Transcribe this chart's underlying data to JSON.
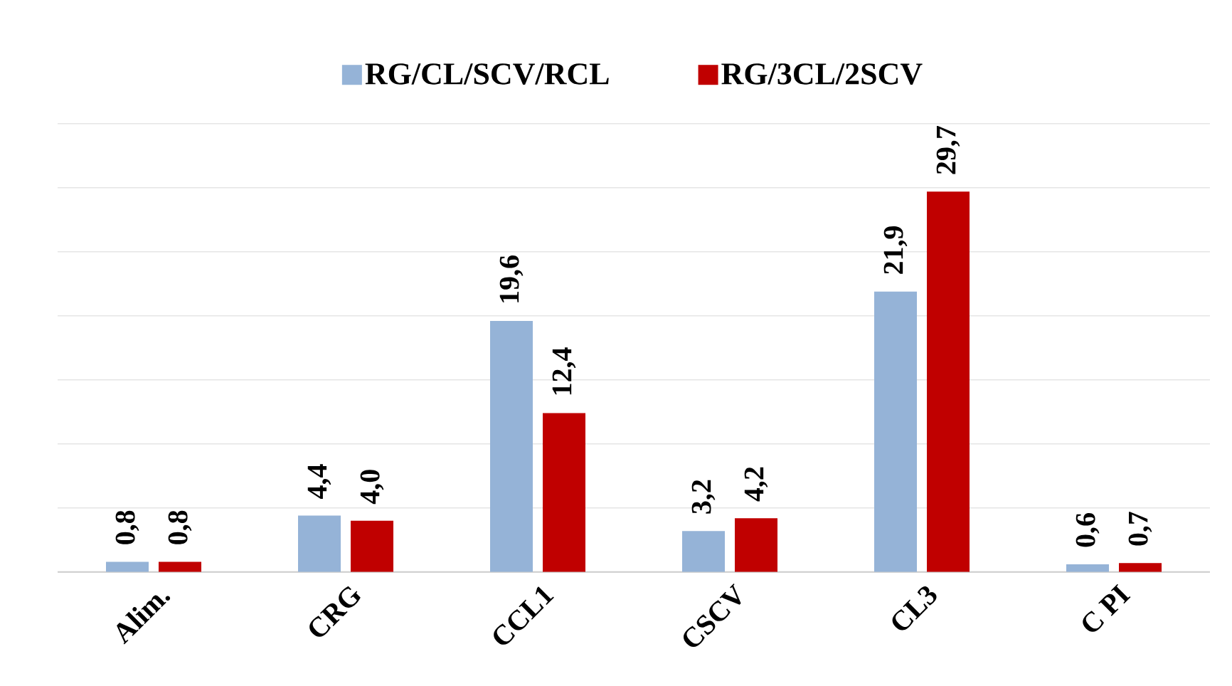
{
  "chart_data": {
    "type": "bar",
    "categories": [
      "Alim.",
      "CRG",
      "CCL1",
      "CSCV",
      "CL3",
      "C PI"
    ],
    "series": [
      {
        "name": "RG/CL/SCV/RCL",
        "color": "#95b3d7",
        "values": [
          0.8,
          4.4,
          19.6,
          3.2,
          21.9,
          0.6
        ],
        "value_labels": [
          "0,8",
          "4,4",
          "19,6",
          "3,2",
          "21,9",
          "0,6"
        ]
      },
      {
        "name": "RG/3CL/2SCV",
        "color": "#c00000",
        "values": [
          0.8,
          4.0,
          12.4,
          4.2,
          29.7,
          0.7
        ],
        "value_labels": [
          "0,8",
          "4,0",
          "12,4",
          "4,2",
          "29,7",
          "0,7"
        ]
      }
    ],
    "ylim": [
      0,
      35
    ],
    "yticks": [
      {
        "value": 0,
        "label": null
      },
      {
        "value": 5,
        "label": null
      },
      {
        "value": 10,
        "label": null
      },
      {
        "value": 15,
        "label": null
      },
      {
        "value": 20,
        "label": null
      },
      {
        "value": 25,
        "label": null
      },
      {
        "value": 30,
        "label": null
      },
      {
        "value": 35,
        "label": null
      }
    ],
    "grid": "y",
    "legend": "top",
    "tick_labels": "x"
  }
}
